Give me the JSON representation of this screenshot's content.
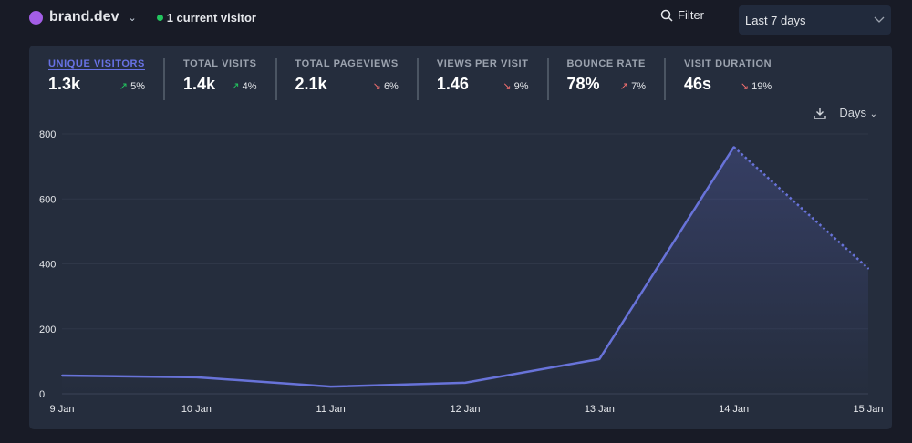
{
  "header": {
    "site": "brand.dev",
    "current_visitors": "1 current visitor",
    "filter_label": "Filter",
    "period": "Last 7 days"
  },
  "stats": [
    {
      "label": "UNIQUE VISITORS",
      "value": "1.3k",
      "change": "5%",
      "direction": "up",
      "good": true
    },
    {
      "label": "TOTAL VISITS",
      "value": "1.4k",
      "change": "4%",
      "direction": "up",
      "good": true
    },
    {
      "label": "TOTAL PAGEVIEWS",
      "value": "2.1k",
      "change": "6%",
      "direction": "down",
      "good": false
    },
    {
      "label": "VIEWS PER VISIT",
      "value": "1.46",
      "change": "9%",
      "direction": "down",
      "good": false
    },
    {
      "label": "BOUNCE RATE",
      "value": "78%",
      "change": "7%",
      "direction": "up",
      "good": false
    },
    {
      "label": "VISIT DURATION",
      "value": "46s",
      "change": "19%",
      "direction": "down",
      "good": false
    }
  ],
  "chart_controls": {
    "interval": "Days"
  },
  "colors": {
    "line": "#6873d9",
    "up": "#22c55e",
    "down": "#f87171"
  },
  "chart_data": {
    "type": "line",
    "title": "Unique visitors",
    "categories": [
      "9 Jan",
      "10 Jan",
      "11 Jan",
      "12 Jan",
      "13 Jan",
      "14 Jan",
      "15 Jan"
    ],
    "values": [
      56,
      51,
      22,
      34,
      107,
      760,
      386
    ],
    "incomplete_last_point": true,
    "yticks": [
      0,
      200,
      400,
      600,
      800
    ],
    "ylim": [
      0,
      800
    ],
    "grid": true
  }
}
